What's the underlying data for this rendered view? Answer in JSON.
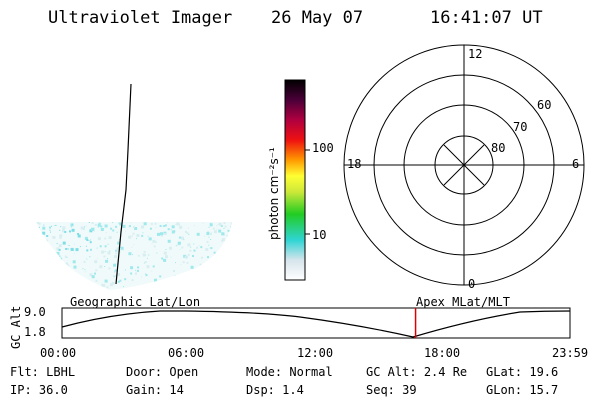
{
  "header": {
    "title": "Ultraviolet Imager",
    "date": "26 May 07",
    "time": "16:41:07 UT"
  },
  "colorbar": {
    "label": "photon cm⁻²s⁻¹",
    "ticks": [
      "100",
      "10"
    ]
  },
  "polar": {
    "mlt_labels": {
      "top": "12",
      "left": "18",
      "right": "6",
      "bottom": "0"
    },
    "lat_labels": [
      "60",
      "70",
      "80"
    ]
  },
  "timeline": {
    "left_caption": "Geographic Lat/Lon",
    "right_caption": "Apex MLat/MLT",
    "axis_label": "GC Alt",
    "y_top": "9.0",
    "y_bottom": "1.8",
    "x_ticks": [
      "00:00",
      "06:00",
      "12:00",
      "18:00",
      "23:59"
    ],
    "current_time_fraction": 0.696
  },
  "footer": {
    "row1": [
      {
        "label": "Flt:",
        "value": "LBHL"
      },
      {
        "label": "Door:",
        "value": "Open"
      },
      {
        "label": "Mode:",
        "value": "Normal"
      },
      {
        "label": "GC Alt:",
        "value": "2.4 Re"
      },
      {
        "label": "GLat:",
        "value": "19.6"
      }
    ],
    "row2": [
      {
        "label": "IP:",
        "value": "36.0"
      },
      {
        "label": "Gain:",
        "value": "14"
      },
      {
        "label": "Dsp:",
        "value": "1.4"
      },
      {
        "label": "Seq:",
        "value": "39"
      },
      {
        "label": "GLon:",
        "value": "15.7"
      }
    ]
  },
  "colors": {
    "marker": "#dd0000",
    "speckle": "#9fe8ec"
  }
}
